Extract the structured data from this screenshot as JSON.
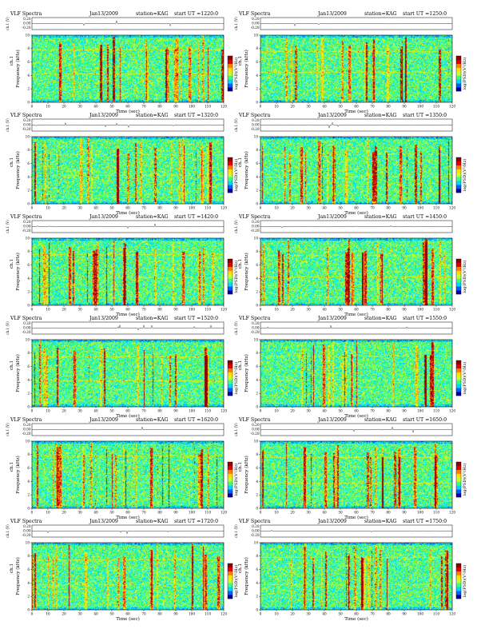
{
  "chart_data": [
    {
      "type": "heatmap",
      "title": "VLF Spectra",
      "date": "Jan13/2009",
      "station": "station=KAG",
      "start_label": "start  UT  =1220:0",
      "channel_label": "ch.1",
      "ylabel_top": "ch.1 (V)",
      "top_yticks": [
        "0.20",
        "0.00",
        "-0.20"
      ],
      "xlabel": "Time (sec)",
      "ylabel": "Frequency (kHz)",
      "xticks": [
        "0",
        "10",
        "20",
        "30",
        "40",
        "50",
        "60",
        "70",
        "80",
        "90",
        "100",
        "110",
        "120"
      ],
      "yticks": [
        "0",
        "2",
        "4",
        "6",
        "8",
        "10"
      ],
      "xlim": [
        0,
        120
      ],
      "ylim": [
        0,
        10
      ],
      "colorbar_label": "log(PSD)(V²/Hz)",
      "colorbar_ticks": [],
      "colormap": [
        "#0000a0",
        "#0060ff",
        "#00d8ff",
        "#40ff80",
        "#c8ff30",
        "#ffe000",
        "#ff8000",
        "#e00000",
        "#900000"
      ]
    },
    {
      "type": "heatmap",
      "title": "VLF Spectra",
      "date": "Jan13/2009",
      "station": "station=KAG",
      "start_label": "start  UT  =1250:0",
      "channel_label": "ch.1",
      "ylabel_top": "ch.1 (V)",
      "top_yticks": [
        "0.20",
        "0.00",
        "-0.20"
      ],
      "xlabel": "Time (sec)",
      "ylabel": "Frequency (kHz)",
      "xticks": [
        "0",
        "10",
        "20",
        "30",
        "40",
        "50",
        "60",
        "70",
        "80",
        "90",
        "100",
        "110",
        "120"
      ],
      "yticks": [
        "0",
        "2",
        "4",
        "6",
        "8",
        "10"
      ],
      "xlim": [
        0,
        120
      ],
      "ylim": [
        0,
        10
      ],
      "colorbar_label": "log(PSD)(V²/Hz)",
      "colorbar_ticks": [],
      "colormap": [
        "#0000a0",
        "#0060ff",
        "#00d8ff",
        "#40ff80",
        "#c8ff30",
        "#ffe000",
        "#ff8000",
        "#e00000",
        "#900000"
      ]
    },
    {
      "type": "heatmap",
      "title": "VLF Spectra",
      "date": "Jan13/2009",
      "station": "station=KAG",
      "start_label": "start  UT  =1320:0",
      "channel_label": "ch.1",
      "ylabel_top": "ch.1 (V)",
      "top_yticks": [
        "0.20",
        "0.00",
        "-0.20"
      ],
      "xlabel": "Time (sec)",
      "ylabel": "Frequency (kHz)",
      "xticks": [
        "0",
        "10",
        "20",
        "30",
        "40",
        "50",
        "60",
        "70",
        "80",
        "90",
        "100",
        "110",
        "120"
      ],
      "yticks": [
        "0",
        "2",
        "4",
        "6",
        "8",
        "10"
      ],
      "xlim": [
        0,
        120
      ],
      "ylim": [
        0,
        10
      ],
      "colorbar_label": "log(PSD)(V²/Hz)",
      "colorbar_ticks": [],
      "colormap": [
        "#0000a0",
        "#0060ff",
        "#00d8ff",
        "#40ff80",
        "#c8ff30",
        "#ffe000",
        "#ff8000",
        "#e00000",
        "#900000"
      ]
    },
    {
      "type": "heatmap",
      "title": "VLF Spectra",
      "date": "Jan13/2009",
      "station": "station=KAG",
      "start_label": "start  UT  =1350:0",
      "channel_label": "ch.1",
      "ylabel_top": "ch.1 (V)",
      "top_yticks": [
        "0.20",
        "0.00",
        "-0.20"
      ],
      "xlabel": "Time (sec)",
      "ylabel": "Frequency (kHz)",
      "xticks": [
        "0",
        "10",
        "20",
        "30",
        "40",
        "50",
        "60",
        "70",
        "80",
        "90",
        "100",
        "110",
        "120"
      ],
      "yticks": [
        "0",
        "2",
        "4",
        "6",
        "8",
        "10"
      ],
      "xlim": [
        0,
        120
      ],
      "ylim": [
        0,
        10
      ],
      "colorbar_label": "log(PSD)(V²/Hz)",
      "colorbar_ticks": [],
      "colormap": [
        "#0000a0",
        "#0060ff",
        "#00d8ff",
        "#40ff80",
        "#c8ff30",
        "#ffe000",
        "#ff8000",
        "#e00000",
        "#900000"
      ]
    },
    {
      "type": "heatmap",
      "title": "VLF Spectra",
      "date": "Jan13/2009",
      "station": "station=KAG",
      "start_label": "start  UT  =1420:0",
      "channel_label": "ch.1",
      "ylabel_top": "ch.1 (V)",
      "top_yticks": [
        "0.20",
        "0.00",
        "-0.20"
      ],
      "xlabel": "Time (sec)",
      "ylabel": "Frequency (kHz)",
      "xticks": [
        "0",
        "10",
        "20",
        "30",
        "40",
        "50",
        "60",
        "70",
        "80",
        "90",
        "100",
        "110",
        "120"
      ],
      "yticks": [
        "0",
        "2",
        "4",
        "6",
        "8",
        "10"
      ],
      "xlim": [
        0,
        120
      ],
      "ylim": [
        0,
        10
      ],
      "colorbar_label": "log(PSD)(V²/Hz)",
      "colorbar_ticks": [],
      "colormap": [
        "#0000a0",
        "#0060ff",
        "#00d8ff",
        "#40ff80",
        "#c8ff30",
        "#ffe000",
        "#ff8000",
        "#e00000",
        "#900000"
      ]
    },
    {
      "type": "heatmap",
      "title": "VLF Spectra",
      "date": "Jan13/2009",
      "station": "station=KAG",
      "start_label": "start  UT  =1450:0",
      "channel_label": "ch.1",
      "ylabel_top": "ch.1 (V)",
      "top_yticks": [
        "0.20",
        "0.00",
        "-0.20"
      ],
      "xlabel": "Time (sec)",
      "ylabel": "Frequency (kHz)",
      "xticks": [
        "0",
        "10",
        "20",
        "30",
        "40",
        "50",
        "60",
        "70",
        "80",
        "90",
        "100",
        "110",
        "120"
      ],
      "yticks": [
        "0",
        "2",
        "4",
        "6",
        "8",
        "10"
      ],
      "xlim": [
        0,
        120
      ],
      "ylim": [
        0,
        10
      ],
      "colorbar_label": "log(PSD)(V²/Hz)",
      "colorbar_ticks": [],
      "colormap": [
        "#0000a0",
        "#0060ff",
        "#00d8ff",
        "#40ff80",
        "#c8ff30",
        "#ffe000",
        "#ff8000",
        "#e00000",
        "#900000"
      ]
    },
    {
      "type": "heatmap",
      "title": "VLF Spectra",
      "date": "Jan13/2009",
      "station": "station=KAG",
      "start_label": "start  UT  =1520:0",
      "channel_label": "ch.1",
      "ylabel_top": "ch.1 (V)",
      "top_yticks": [
        "0.20",
        "0.00",
        "-0.20"
      ],
      "xlabel": "Time (sec)",
      "ylabel": "Frequency (kHz)",
      "xticks": [
        "0",
        "10",
        "20",
        "30",
        "40",
        "50",
        "60",
        "70",
        "80",
        "90",
        "100",
        "110",
        "120"
      ],
      "yticks": [
        "0",
        "2",
        "4",
        "6",
        "8",
        "10"
      ],
      "xlim": [
        0,
        120
      ],
      "ylim": [
        0,
        10
      ],
      "colorbar_label": "log(PSD)(V²/Hz)",
      "colorbar_ticks": [],
      "colormap": [
        "#0000a0",
        "#0060ff",
        "#00d8ff",
        "#40ff80",
        "#c8ff30",
        "#ffe000",
        "#ff8000",
        "#e00000",
        "#900000"
      ]
    },
    {
      "type": "heatmap",
      "title": "VLF Spectra",
      "date": "Jan13/2009",
      "station": "station=KAG",
      "start_label": "start  UT  =1550:0",
      "channel_label": "ch.1",
      "ylabel_top": "ch.1 (V)",
      "top_yticks": [
        "0.20",
        "0.00",
        "-0.20"
      ],
      "xlabel": "Time (sec)",
      "ylabel": "Frequency (kHz)",
      "xticks": [
        "0",
        "10",
        "20",
        "30",
        "40",
        "50",
        "60",
        "70",
        "80",
        "90",
        "100",
        "110",
        "120"
      ],
      "yticks": [
        "0",
        "2",
        "4",
        "6",
        "8",
        "10"
      ],
      "xlim": [
        0,
        120
      ],
      "ylim": [
        0,
        10
      ],
      "colorbar_label": "log(PSD)(V²/Hz)",
      "colorbar_ticks": [],
      "colormap": [
        "#0000a0",
        "#0060ff",
        "#00d8ff",
        "#40ff80",
        "#c8ff30",
        "#ffe000",
        "#ff8000",
        "#e00000",
        "#900000"
      ]
    },
    {
      "type": "heatmap",
      "title": "VLF Spectra",
      "date": "Jan13/2009",
      "station": "station=KAG",
      "start_label": "start  UT  =1620:0",
      "channel_label": "ch.1",
      "ylabel_top": "ch.1 (V)",
      "top_yticks": [
        "0.20",
        "0.00",
        "-0.20"
      ],
      "xlabel": "Time (sec)",
      "ylabel": "Frequency (kHz)",
      "xticks": [
        "0",
        "10",
        "20",
        "30",
        "40",
        "50",
        "60",
        "70",
        "80",
        "90",
        "100",
        "110",
        "120"
      ],
      "yticks": [
        "0",
        "2",
        "4",
        "6",
        "8",
        "10"
      ],
      "xlim": [
        0,
        120
      ],
      "ylim": [
        0,
        10
      ],
      "colorbar_label": "log(PSD)(V²/Hz)",
      "colorbar_ticks": [],
      "colormap": [
        "#0000a0",
        "#0060ff",
        "#00d8ff",
        "#40ff80",
        "#c8ff30",
        "#ffe000",
        "#ff8000",
        "#e00000",
        "#900000"
      ]
    },
    {
      "type": "heatmap",
      "title": "VLF Spectra",
      "date": "Jan13/2009",
      "station": "station=KAG",
      "start_label": "start  UT  =1650:0",
      "channel_label": "ch.1",
      "ylabel_top": "ch.1 (V)",
      "top_yticks": [
        "0.20",
        "0.00",
        "-0.20"
      ],
      "xlabel": "Time (sec)",
      "ylabel": "Frequency (kHz)",
      "xticks": [
        "0",
        "10",
        "20",
        "30",
        "40",
        "50",
        "60",
        "70",
        "80",
        "90",
        "100",
        "110",
        "120"
      ],
      "yticks": [
        "0",
        "2",
        "4",
        "6",
        "8",
        "10"
      ],
      "xlim": [
        0,
        120
      ],
      "ylim": [
        0,
        10
      ],
      "colorbar_label": "log(PSD)(V²/Hz)",
      "colorbar_ticks": [],
      "colormap": [
        "#0000a0",
        "#0060ff",
        "#00d8ff",
        "#40ff80",
        "#c8ff30",
        "#ffe000",
        "#ff8000",
        "#e00000",
        "#900000"
      ]
    },
    {
      "type": "heatmap",
      "title": "VLF Spectra",
      "date": "Jan13/2009",
      "station": "station=KAG",
      "start_label": "start  UT  =1720:0",
      "channel_label": "ch.1",
      "ylabel_top": "ch.1 (V)",
      "top_yticks": [
        "0.20",
        "0.00",
        "-0.20"
      ],
      "xlabel": "Time (sec)",
      "ylabel": "Frequency (kHz)",
      "xticks": [
        "0",
        "10",
        "20",
        "30",
        "40",
        "50",
        "60",
        "70",
        "80",
        "90",
        "100",
        "110",
        "120"
      ],
      "yticks": [
        "0",
        "2",
        "4",
        "6",
        "8",
        "10"
      ],
      "xlim": [
        0,
        120
      ],
      "ylim": [
        0,
        10
      ],
      "colorbar_label": "log(PSD)(V²/Hz)",
      "colorbar_ticks": [],
      "colormap": [
        "#0000a0",
        "#0060ff",
        "#00d8ff",
        "#40ff80",
        "#c8ff30",
        "#ffe000",
        "#ff8000",
        "#e00000",
        "#900000"
      ]
    },
    {
      "type": "heatmap",
      "title": "VLF Spectra",
      "date": "Jan13/2009",
      "station": "station=KAG",
      "start_label": "start  UT  =1750:0",
      "channel_label": "ch.1",
      "ylabel_top": "ch.1 (V)",
      "top_yticks": [
        "0.20",
        "0.00",
        "-0.20"
      ],
      "xlabel": "Time (sec)",
      "ylabel": "Frequency (kHz)",
      "xticks": [
        "0",
        "10",
        "20",
        "30",
        "40",
        "50",
        "60",
        "70",
        "80",
        "90",
        "100",
        "110",
        "120"
      ],
      "yticks": [
        "0",
        "2",
        "4",
        "6",
        "8",
        "10"
      ],
      "xlim": [
        0,
        120
      ],
      "ylim": [
        0,
        10
      ],
      "colorbar_label": "log(PSD)(V²/Hz)",
      "colorbar_ticks": [],
      "colormap": [
        "#0000a0",
        "#0060ff",
        "#00d8ff",
        "#40ff80",
        "#c8ff30",
        "#ffe000",
        "#ff8000",
        "#e00000",
        "#900000"
      ]
    }
  ]
}
